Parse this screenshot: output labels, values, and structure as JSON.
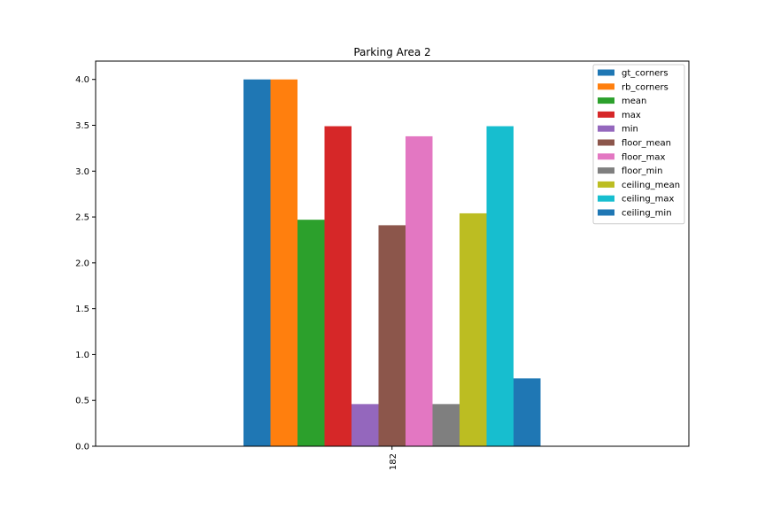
{
  "chart_data": {
    "type": "bar",
    "title": "Parking Area 2",
    "xlabel": "",
    "ylabel": "",
    "categories": [
      "182"
    ],
    "ylim": [
      0,
      4.2
    ],
    "yticks": [
      "0.0",
      "0.5",
      "1.0",
      "1.5",
      "2.0",
      "2.5",
      "3.0",
      "3.5",
      "4.0"
    ],
    "grid": false,
    "legend_position": "top-right",
    "series": [
      {
        "name": "gt_corners",
        "values": [
          4.0
        ],
        "color": "#1f77b4"
      },
      {
        "name": "rb_corners",
        "values": [
          4.0
        ],
        "color": "#ff7f0e"
      },
      {
        "name": "mean",
        "values": [
          2.47
        ],
        "color": "#2ca02c"
      },
      {
        "name": "max",
        "values": [
          3.49
        ],
        "color": "#d62728"
      },
      {
        "name": "min",
        "values": [
          0.46
        ],
        "color": "#9467bd"
      },
      {
        "name": "floor_mean",
        "values": [
          2.41
        ],
        "color": "#8c564b"
      },
      {
        "name": "floor_max",
        "values": [
          3.38
        ],
        "color": "#e377c2"
      },
      {
        "name": "floor_min",
        "values": [
          0.46
        ],
        "color": "#7f7f7f"
      },
      {
        "name": "ceiling_mean",
        "values": [
          2.54
        ],
        "color": "#bcbd22"
      },
      {
        "name": "ceiling_max",
        "values": [
          3.49
        ],
        "color": "#17becf"
      },
      {
        "name": "ceiling_min",
        "values": [
          0.74
        ],
        "color": "#1f77b4"
      }
    ]
  }
}
